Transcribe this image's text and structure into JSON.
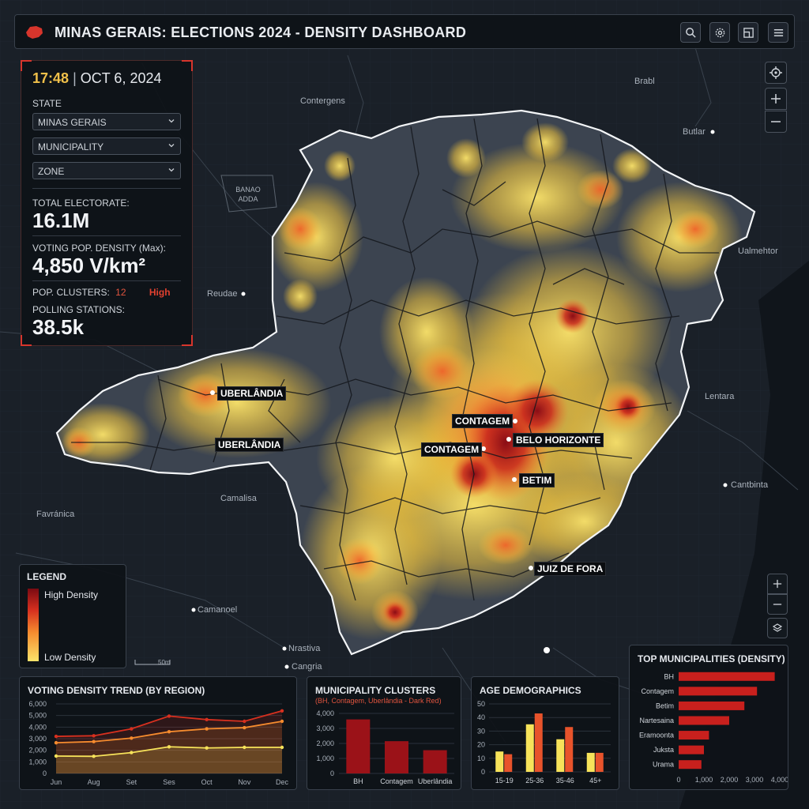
{
  "header": {
    "title": "MINAS GERAIS: ELECTIONS 2024 - DENSITY DASHBOARD",
    "buttons": [
      "search-icon",
      "settings-icon",
      "layout-icon",
      "menu-icon"
    ]
  },
  "filters": {
    "time": "17:48",
    "separator": "|",
    "date": "OCT 6, 2024",
    "state_label": "STATE",
    "state_value": "MINAS GERAIS",
    "municipality_value": "MUNICIPALITY",
    "zone_value": "ZONE"
  },
  "stats": {
    "electorate_label": "TOTAL ELECTORATE:",
    "electorate_value": "16.1M",
    "density_label": "VOTING POP. DENSITY (Max):",
    "density_value": "4,850 V/km²",
    "clusters_label": "POP. CLUSTERS:",
    "clusters_value": "12",
    "clusters_level": "High",
    "stations_label": "POLLING STATIONS:",
    "stations_value": "38.5k"
  },
  "map": {
    "cities": [
      {
        "name": "UBERLÂNDIA"
      },
      {
        "name": "UBERLÂNDIA"
      },
      {
        "name": "CONTAGEM"
      },
      {
        "name": "BELO HORIZONTE"
      },
      {
        "name": "CONTAGEM"
      },
      {
        "name": "BETIM"
      },
      {
        "name": "JUIZ DE FORA"
      }
    ],
    "places": [
      "Contergens",
      "Brabl",
      "Butlar",
      "Ualmehtor",
      "BANAO ADDA",
      "Reudae",
      "Lentara",
      "Cantbinta",
      "Camalisa",
      "Favránica",
      "Camanoel",
      "Nrastiva",
      "Cangria"
    ],
    "scale": "50m",
    "colors": {
      "high": "#7a0a12",
      "mid": "#f58b2e",
      "low": "#fbe36a"
    }
  },
  "legend": {
    "title": "LEGEND",
    "high": "High Density",
    "low": "Low Density"
  },
  "charts": {
    "trend": {
      "title": "VOTING DENSITY TREND (BY REGION)",
      "type": "line",
      "categories": [
        "Jun",
        "Aug",
        "Set",
        "Ses",
        "Oct",
        "Nov",
        "Dec"
      ],
      "ylim": [
        0,
        6000
      ],
      "yticks": [
        "6,000",
        "5,000",
        "4,000",
        "3,000",
        "2,000",
        "1,000",
        "0"
      ],
      "series": [
        {
          "color": "#d7301f",
          "values": [
            3200,
            3250,
            3850,
            4950,
            4650,
            4500,
            5400
          ]
        },
        {
          "color": "#f58b2e",
          "values": [
            2650,
            2750,
            3050,
            3600,
            3850,
            3950,
            4500
          ]
        },
        {
          "color": "#f7e35a",
          "values": [
            1500,
            1480,
            1800,
            2300,
            2200,
            2250,
            2250
          ]
        }
      ]
    },
    "clusters": {
      "title": "MUNICIPALITY CLUSTERS",
      "subtitle": "(BH, Contagem, Uberlândia - Dark Red)",
      "type": "bar",
      "categories": [
        "BH",
        "Contagem",
        "Uberlândia"
      ],
      "values": [
        3600,
        2150,
        1550
      ],
      "ylim": [
        0,
        4000
      ],
      "yticks": [
        "4,000",
        "3,000",
        "2,000",
        "1,000",
        "0"
      ]
    },
    "age": {
      "title": "AGE DEMOGRAPHICS",
      "type": "bar",
      "categories": [
        "15-19",
        "25-36",
        "35-46",
        "45+"
      ],
      "ylim": [
        0,
        50
      ],
      "yticks": [
        "50",
        "40",
        "30",
        "20",
        "10",
        "0"
      ],
      "series": [
        {
          "color": "#f7e35a",
          "values": [
            15,
            35,
            24,
            14
          ]
        },
        {
          "color": "#e8532b",
          "values": [
            13,
            43,
            33,
            14
          ]
        }
      ]
    },
    "top": {
      "title": "TOP MUNICIPALITIES (DENSITY)",
      "type": "bar",
      "categories": [
        "BH",
        "Contagem",
        "Betim",
        "Nartesaina",
        "Eramoonta",
        "Juksta",
        "Urama"
      ],
      "values": [
        3800,
        3100,
        2600,
        2000,
        1200,
        1000,
        900
      ],
      "xlim": [
        0,
        4000
      ],
      "xticks": [
        "0",
        "1,000",
        "2,000",
        "3,000",
        "4,000"
      ]
    }
  }
}
